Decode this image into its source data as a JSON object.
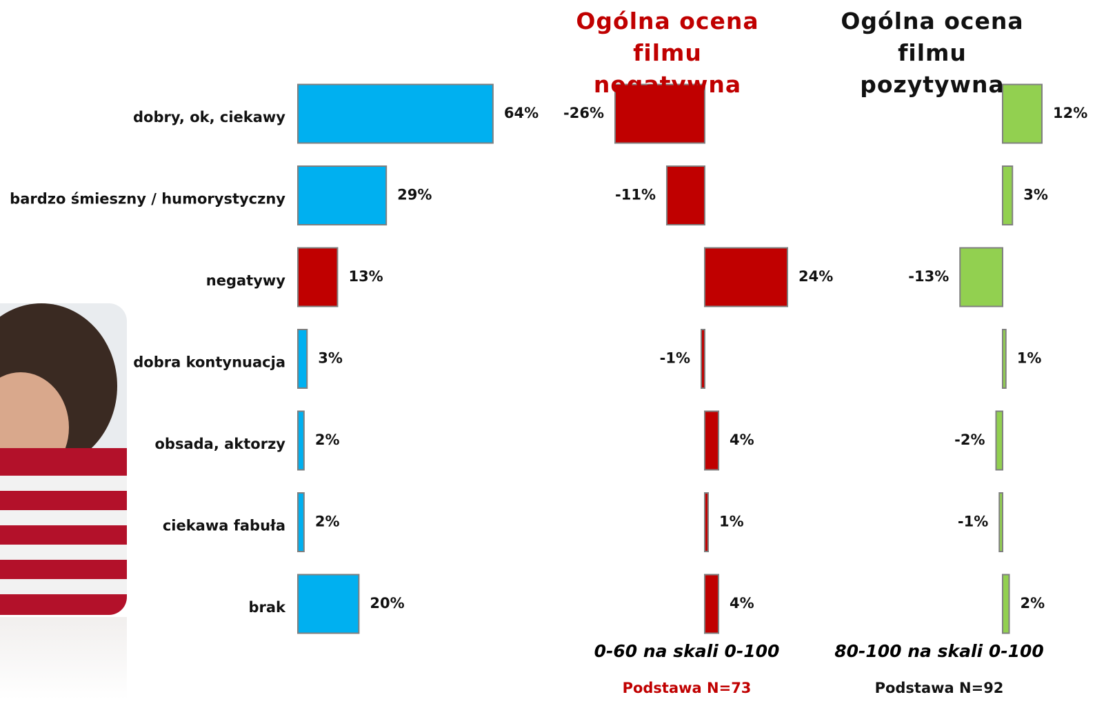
{
  "chart_data": [
    {
      "type": "hbar",
      "categories": [
        "dobry, ok, ciekawy",
        "bardzo śmieszny / humorystyczny",
        "negatywy",
        "dobra kontynuacja",
        "obsada, aktorzy",
        "ciekawa fabuła",
        "brak"
      ],
      "values": [
        64,
        29,
        13,
        3,
        2,
        2,
        20
      ],
      "value_labels": [
        "64%",
        "29%",
        "13%",
        "3%",
        "2%",
        "2%",
        "20%"
      ],
      "colors": [
        "#00b0f0",
        "#00b0f0",
        "#c00000",
        "#00b0f0",
        "#00b0f0",
        "#00b0f0",
        "#00b0f0"
      ]
    },
    {
      "type": "hbar",
      "title": "Ogólna ocena filmu negatywna",
      "subtitle": "0-60 na skali 0-100",
      "note": "Podstawa N=73",
      "values": [
        -26,
        -11,
        24,
        -1,
        4,
        1,
        4
      ],
      "value_labels": [
        "-26%",
        "-11%",
        "24%",
        "-1%",
        "4%",
        "1%",
        "4%"
      ],
      "color": "#c00000"
    },
    {
      "type": "hbar",
      "title": "Ogólna ocena filmu pozytywna",
      "subtitle": "80-100 na skali 0-100",
      "note": "Podstawa N=92",
      "values": [
        12,
        3,
        -13,
        1,
        -2,
        -1,
        2
      ],
      "value_labels": [
        "12%",
        "3%",
        "-13%",
        "1%",
        "-2%",
        "-1%",
        "2%"
      ],
      "color": "#92d050"
    }
  ]
}
